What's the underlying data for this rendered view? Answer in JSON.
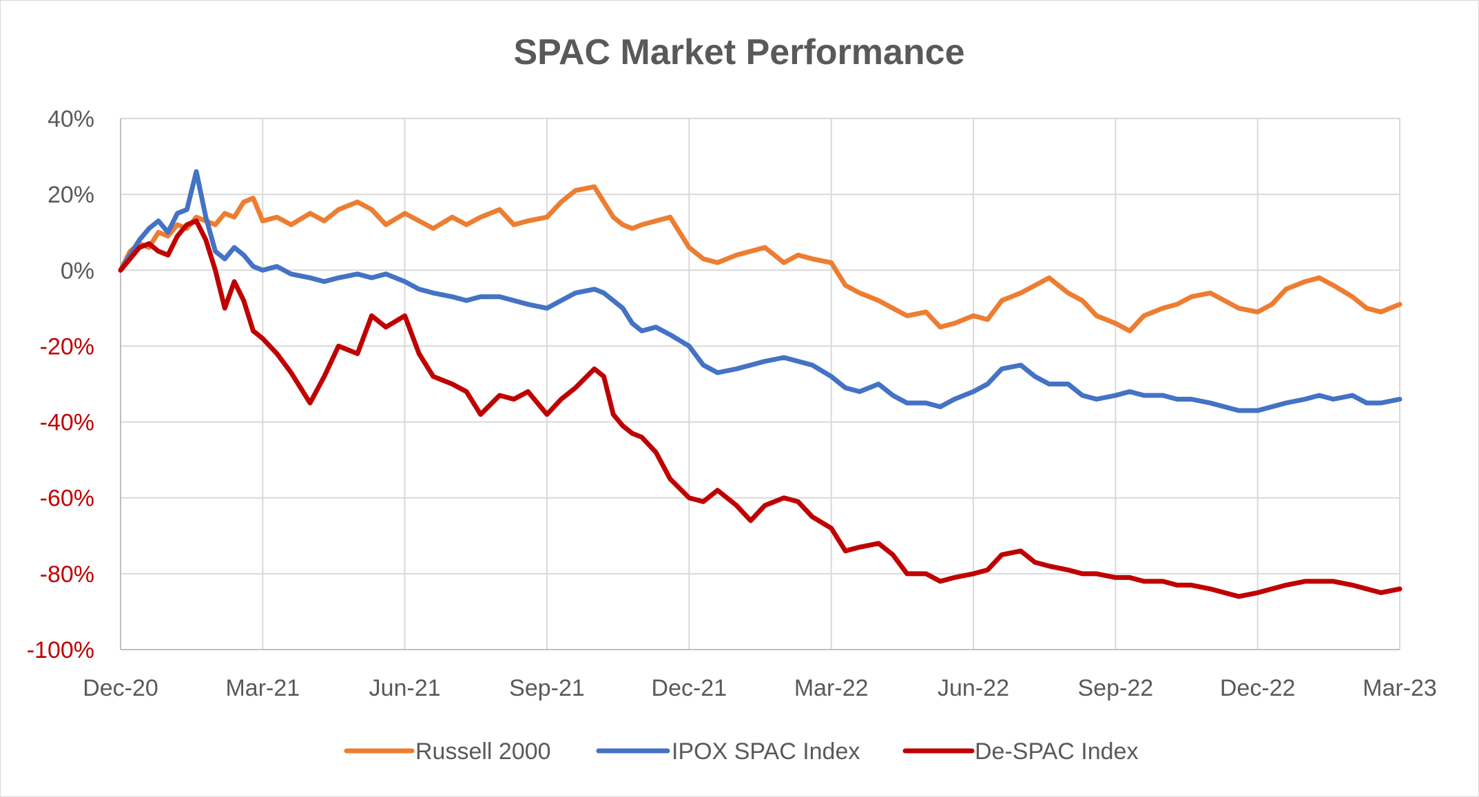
{
  "chart_data": {
    "type": "line",
    "title": "SPAC Market Performance",
    "xlabel": "",
    "ylabel": "",
    "x_ticks": [
      "Dec-20",
      "Mar-21",
      "Jun-21",
      "Sep-21",
      "Dec-21",
      "Mar-22",
      "Jun-22",
      "Sep-22",
      "Dec-22",
      "Mar-23"
    ],
    "y_ticks": [
      {
        "value": 40,
        "label": "40%",
        "color": "#595959"
      },
      {
        "value": 20,
        "label": "20%",
        "color": "#595959"
      },
      {
        "value": 0,
        "label": "0%",
        "color": "#595959"
      },
      {
        "value": -20,
        "label": "-20%",
        "color": "#c00000"
      },
      {
        "value": -40,
        "label": "-40%",
        "color": "#c00000"
      },
      {
        "value": -60,
        "label": "-60%",
        "color": "#c00000"
      },
      {
        "value": -80,
        "label": "-80%",
        "color": "#c00000"
      },
      {
        "value": -100,
        "label": "-100%",
        "color": "#c00000"
      }
    ],
    "ylim": [
      -100,
      40
    ],
    "xlim_months": [
      0,
      27
    ],
    "grid": true,
    "legend_position": "bottom",
    "series": [
      {
        "name": "Russell 2000",
        "color": "#ed7d31",
        "x": [
          0,
          0.2,
          0.4,
          0.6,
          0.8,
          1.0,
          1.2,
          1.4,
          1.6,
          1.8,
          2.0,
          2.2,
          2.4,
          2.6,
          2.8,
          3.0,
          3.3,
          3.6,
          4.0,
          4.3,
          4.6,
          5.0,
          5.3,
          5.6,
          6.0,
          6.3,
          6.6,
          7.0,
          7.3,
          7.6,
          8.0,
          8.3,
          8.6,
          9.0,
          9.3,
          9.6,
          10.0,
          10.2,
          10.4,
          10.6,
          10.8,
          11.0,
          11.3,
          11.6,
          12.0,
          12.3,
          12.6,
          13.0,
          13.3,
          13.6,
          14.0,
          14.3,
          14.6,
          15.0,
          15.3,
          15.6,
          16.0,
          16.3,
          16.6,
          17.0,
          17.3,
          17.6,
          18.0,
          18.3,
          18.6,
          19.0,
          19.3,
          19.6,
          20.0,
          20.3,
          20.6,
          21.0,
          21.3,
          21.6,
          22.0,
          22.3,
          22.6,
          23.0,
          23.3,
          23.6,
          24.0,
          24.3,
          24.6,
          25.0,
          25.3,
          25.6,
          26.0,
          26.3,
          26.6,
          27.0
        ],
        "values": [
          0,
          5,
          7,
          6,
          10,
          9,
          12,
          11,
          14,
          13,
          12,
          15,
          14,
          18,
          19,
          13,
          14,
          12,
          15,
          13,
          16,
          18,
          16,
          12,
          15,
          13,
          11,
          14,
          12,
          14,
          16,
          12,
          13,
          14,
          18,
          21,
          22,
          18,
          14,
          12,
          11,
          12,
          13,
          14,
          6,
          3,
          2,
          4,
          5,
          6,
          2,
          4,
          3,
          2,
          -4,
          -6,
          -8,
          -10,
          -12,
          -11,
          -15,
          -14,
          -12,
          -13,
          -8,
          -6,
          -4,
          -2,
          -6,
          -8,
          -12,
          -14,
          -16,
          -12,
          -10,
          -9,
          -7,
          -6,
          -8,
          -10,
          -11,
          -9,
          -5,
          -3,
          -2,
          -4,
          -7,
          -10,
          -11,
          -9
        ]
      },
      {
        "name": "IPOX SPAC Index",
        "color": "#4472c4",
        "x": [
          0,
          0.2,
          0.4,
          0.6,
          0.8,
          1.0,
          1.2,
          1.4,
          1.6,
          1.8,
          2.0,
          2.2,
          2.4,
          2.6,
          2.8,
          3.0,
          3.3,
          3.6,
          4.0,
          4.3,
          4.6,
          5.0,
          5.3,
          5.6,
          6.0,
          6.3,
          6.6,
          7.0,
          7.3,
          7.6,
          8.0,
          8.3,
          8.6,
          9.0,
          9.3,
          9.6,
          10.0,
          10.2,
          10.4,
          10.6,
          10.8,
          11.0,
          11.3,
          11.6,
          12.0,
          12.3,
          12.6,
          13.0,
          13.3,
          13.6,
          14.0,
          14.3,
          14.6,
          15.0,
          15.3,
          15.6,
          16.0,
          16.3,
          16.6,
          17.0,
          17.3,
          17.6,
          18.0,
          18.3,
          18.6,
          19.0,
          19.3,
          19.6,
          20.0,
          20.3,
          20.6,
          21.0,
          21.3,
          21.6,
          22.0,
          22.3,
          22.6,
          23.0,
          23.3,
          23.6,
          24.0,
          24.3,
          24.6,
          25.0,
          25.3,
          25.6,
          26.0,
          26.3,
          26.6,
          27.0
        ],
        "values": [
          0,
          4,
          8,
          11,
          13,
          10,
          15,
          16,
          26,
          14,
          5,
          3,
          6,
          4,
          1,
          0,
          1,
          -1,
          -2,
          -3,
          -2,
          -1,
          -2,
          -1,
          -3,
          -5,
          -6,
          -7,
          -8,
          -7,
          -7,
          -8,
          -9,
          -10,
          -8,
          -6,
          -5,
          -6,
          -8,
          -10,
          -14,
          -16,
          -15,
          -17,
          -20,
          -25,
          -27,
          -26,
          -25,
          -24,
          -23,
          -24,
          -25,
          -28,
          -31,
          -32,
          -30,
          -33,
          -35,
          -35,
          -36,
          -34,
          -32,
          -30,
          -26,
          -25,
          -28,
          -30,
          -30,
          -33,
          -34,
          -33,
          -32,
          -33,
          -33,
          -34,
          -34,
          -35,
          -36,
          -37,
          -37,
          -36,
          -35,
          -34,
          -33,
          -34,
          -33,
          -35,
          -35,
          -34
        ]
      },
      {
        "name": "De-SPAC Index",
        "color": "#c00000",
        "x": [
          0,
          0.2,
          0.4,
          0.6,
          0.8,
          1.0,
          1.2,
          1.4,
          1.6,
          1.8,
          2.0,
          2.2,
          2.4,
          2.6,
          2.8,
          3.0,
          3.3,
          3.6,
          4.0,
          4.3,
          4.6,
          5.0,
          5.3,
          5.6,
          6.0,
          6.3,
          6.6,
          7.0,
          7.3,
          7.6,
          8.0,
          8.3,
          8.6,
          9.0,
          9.3,
          9.6,
          10.0,
          10.2,
          10.4,
          10.6,
          10.8,
          11.0,
          11.3,
          11.6,
          12.0,
          12.3,
          12.6,
          13.0,
          13.3,
          13.6,
          14.0,
          14.3,
          14.6,
          15.0,
          15.3,
          15.6,
          16.0,
          16.3,
          16.6,
          17.0,
          17.3,
          17.6,
          18.0,
          18.3,
          18.6,
          19.0,
          19.3,
          19.6,
          20.0,
          20.3,
          20.6,
          21.0,
          21.3,
          21.6,
          22.0,
          22.3,
          22.6,
          23.0,
          23.3,
          23.6,
          24.0,
          24.3,
          24.6,
          25.0,
          25.3,
          25.6,
          26.0,
          26.3,
          26.6,
          27.0
        ],
        "values": [
          0,
          3,
          6,
          7,
          5,
          4,
          9,
          12,
          13,
          8,
          0,
          -10,
          -3,
          -8,
          -16,
          -18,
          -22,
          -27,
          -35,
          -28,
          -20,
          -22,
          -12,
          -15,
          -12,
          -22,
          -28,
          -30,
          -32,
          -38,
          -33,
          -34,
          -32,
          -38,
          -34,
          -31,
          -26,
          -28,
          -38,
          -41,
          -43,
          -44,
          -48,
          -55,
          -60,
          -61,
          -58,
          -62,
          -66,
          -62,
          -60,
          -61,
          -65,
          -68,
          -74,
          -73,
          -72,
          -75,
          -80,
          -80,
          -82,
          -81,
          -80,
          -79,
          -75,
          -74,
          -77,
          -78,
          -79,
          -80,
          -80,
          -81,
          -81,
          -82,
          -82,
          -83,
          -83,
          -84,
          -85,
          -86,
          -85,
          -84,
          -83,
          -82,
          -82,
          -82,
          -83,
          -84,
          -85,
          -84
        ]
      }
    ]
  }
}
